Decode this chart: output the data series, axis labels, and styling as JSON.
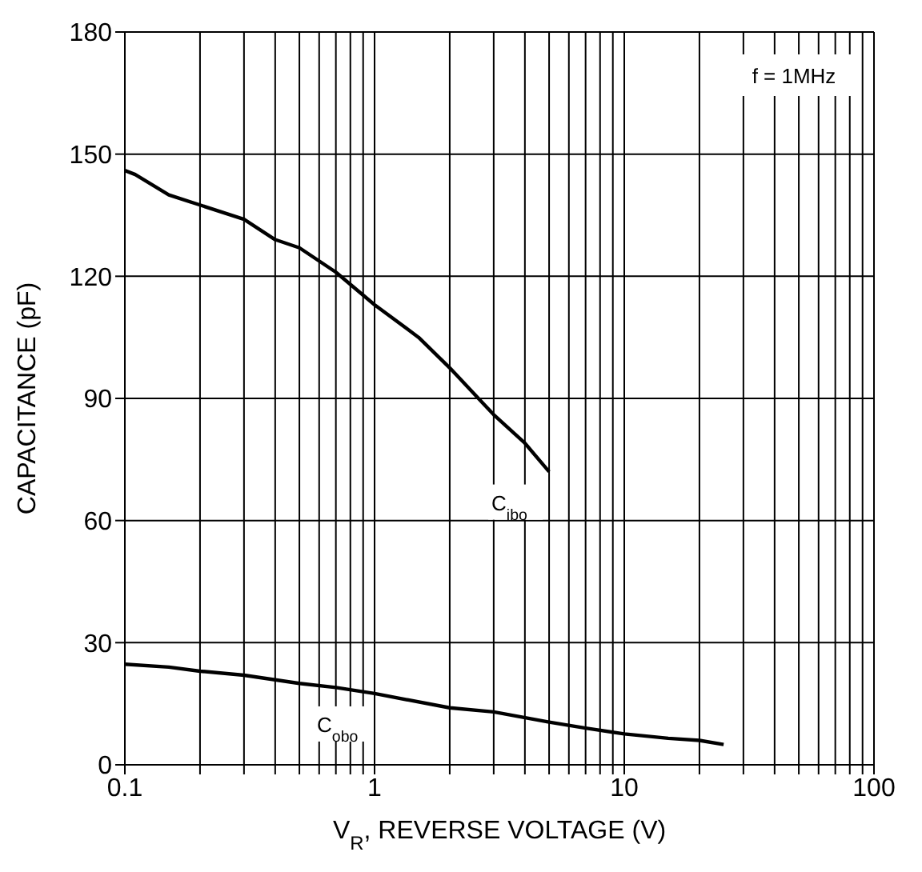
{
  "chart_data": {
    "type": "line",
    "xlabel": "V$_{R}$, REVERSE VOLTAGE (V)",
    "ylabel": "CAPACITANCE (pF)",
    "log": "x",
    "grid": true,
    "marker": "none",
    "line_style": "solid",
    "xlim": [
      0.1,
      100
    ],
    "ylim": [
      0,
      180
    ],
    "xticks": [
      0.1,
      {
        "value": 0.2,
        "label": null
      },
      {
        "value": 0.3,
        "label": null
      },
      {
        "value": 0.4,
        "label": null
      },
      {
        "value": 0.5,
        "label": null
      },
      {
        "value": 0.6,
        "label": null
      },
      {
        "value": 0.7,
        "label": null
      },
      {
        "value": 0.8,
        "label": null
      },
      {
        "value": 0.9,
        "label": null
      },
      1,
      {
        "value": 2,
        "label": null
      },
      {
        "value": 3,
        "label": null
      },
      {
        "value": 4,
        "label": null
      },
      {
        "value": 5,
        "label": null
      },
      {
        "value": 6,
        "label": null
      },
      {
        "value": 7,
        "label": null
      },
      {
        "value": 8,
        "label": null
      },
      {
        "value": 9,
        "label": null
      },
      10,
      {
        "value": 20,
        "label": null
      },
      {
        "value": 30,
        "label": null
      },
      {
        "value": 40,
        "label": null
      },
      {
        "value": 50,
        "label": null
      },
      {
        "value": 60,
        "label": null
      },
      {
        "value": 70,
        "label": null
      },
      {
        "value": 80,
        "label": null
      },
      {
        "value": 90,
        "label": null
      },
      100
    ],
    "yticks": [
      0,
      30,
      60,
      90,
      120,
      150,
      180
    ],
    "series": [
      {
        "name": "C$_{ibo}$",
        "color": "#000000",
        "x": [
          0.1,
          0.11,
          0.15,
          0.2,
          0.3,
          0.4,
          0.5,
          0.7,
          1,
          1.5,
          2,
          3,
          4,
          5
        ],
        "values": [
          146,
          145,
          140,
          137.5,
          134,
          129,
          127,
          121,
          113,
          105,
          97.5,
          86,
          79,
          72
        ]
      },
      {
        "name": "C$_{obo}$",
        "color": "#000000",
        "x": [
          0.1,
          0.15,
          0.2,
          0.3,
          0.5,
          0.7,
          1,
          2,
          3,
          5,
          7,
          10,
          15,
          20,
          25
        ],
        "values": [
          24.7,
          24,
          23,
          22,
          20,
          19,
          17.5,
          14,
          13,
          10.5,
          9,
          7.6,
          6.5,
          6,
          5
        ]
      }
    ],
    "annotations": [
      "f = 1MHz"
    ]
  }
}
